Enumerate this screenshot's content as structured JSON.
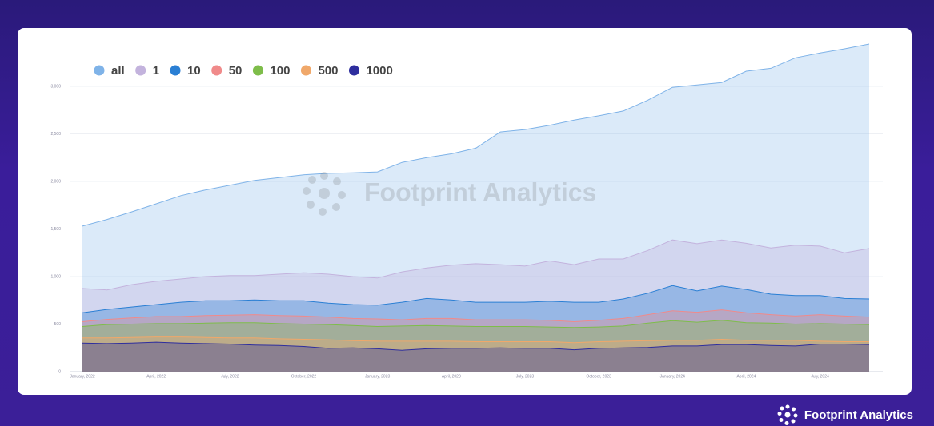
{
  "chart_data": {
    "type": "area",
    "categories": [
      "January, 2022",
      null,
      null,
      "April, 2022",
      null,
      null,
      "July, 2022",
      null,
      null,
      "October, 2022",
      null,
      null,
      "January, 2023",
      null,
      null,
      "April, 2023",
      null,
      null,
      "July, 2023",
      null,
      null,
      "October, 2023",
      null,
      null,
      "January, 2024",
      null,
      null,
      "April, 2024",
      null,
      null,
      "July, 2024",
      null,
      null
    ],
    "series": [
      {
        "name": "all",
        "color": "#7fb3e8",
        "values": [
          1530,
          1600,
          1680,
          1765,
          1850,
          1910,
          1960,
          2010,
          2040,
          2070,
          2085,
          2090,
          2100,
          2200,
          2250,
          2290,
          2350,
          2520,
          2545,
          2590,
          2645,
          2690,
          2740,
          2855,
          2990,
          3015,
          3040,
          3160,
          3190,
          3300,
          3350,
          3395,
          3445
        ]
      },
      {
        "name": "1",
        "color": "#c3b3dd",
        "values": [
          875,
          860,
          915,
          950,
          975,
          1000,
          1010,
          1010,
          1025,
          1040,
          1025,
          1000,
          985,
          1050,
          1090,
          1120,
          1135,
          1125,
          1110,
          1165,
          1125,
          1185,
          1185,
          1275,
          1385,
          1345,
          1385,
          1350,
          1300,
          1330,
          1320,
          1250,
          1295
        ]
      },
      {
        "name": "10",
        "color": "#2a7fd4",
        "values": [
          620,
          655,
          680,
          705,
          730,
          745,
          745,
          755,
          745,
          745,
          720,
          705,
          700,
          730,
          770,
          755,
          730,
          730,
          730,
          740,
          730,
          730,
          765,
          825,
          905,
          850,
          900,
          865,
          815,
          800,
          800,
          770,
          765
        ]
      },
      {
        "name": "50",
        "color": "#f08a8a",
        "values": [
          525,
          550,
          565,
          580,
          580,
          590,
          595,
          600,
          590,
          585,
          575,
          560,
          555,
          545,
          560,
          560,
          545,
          545,
          545,
          540,
          525,
          540,
          560,
          600,
          640,
          625,
          650,
          620,
          600,
          585,
          600,
          585,
          575
        ]
      },
      {
        "name": "100",
        "color": "#7ebd4a",
        "values": [
          475,
          495,
          500,
          505,
          505,
          510,
          515,
          515,
          505,
          500,
          495,
          485,
          475,
          480,
          485,
          480,
          475,
          475,
          475,
          470,
          465,
          470,
          480,
          510,
          535,
          520,
          540,
          515,
          510,
          500,
          505,
          500,
          495
        ]
      },
      {
        "name": "500",
        "color": "#f0a86a",
        "values": [
          355,
          355,
          360,
          365,
          365,
          360,
          355,
          355,
          345,
          340,
          335,
          325,
          320,
          320,
          320,
          320,
          315,
          315,
          315,
          315,
          305,
          315,
          320,
          325,
          330,
          330,
          340,
          330,
          330,
          330,
          320,
          315,
          315
        ]
      },
      {
        "name": "1000",
        "color": "#2e2e9e",
        "values": [
          300,
          295,
          300,
          310,
          300,
          295,
          290,
          280,
          275,
          265,
          245,
          250,
          240,
          225,
          240,
          245,
          245,
          250,
          245,
          245,
          230,
          245,
          250,
          255,
          270,
          270,
          285,
          285,
          275,
          270,
          290,
          290,
          285
        ]
      }
    ],
    "ylim": [
      0,
      3500
    ],
    "yticks": [
      0,
      500,
      {
        "value": 1000,
        "label": "1,000"
      },
      {
        "value": 1500,
        "label": "1,500"
      },
      {
        "value": 2000,
        "label": "2,000"
      },
      {
        "value": 2500,
        "label": "2,500"
      },
      {
        "value": 3000,
        "label": "3,000"
      }
    ],
    "grid": true,
    "legend": "top-left",
    "watermark": "Footprint Analytics"
  },
  "brand": "Footprint Analytics"
}
